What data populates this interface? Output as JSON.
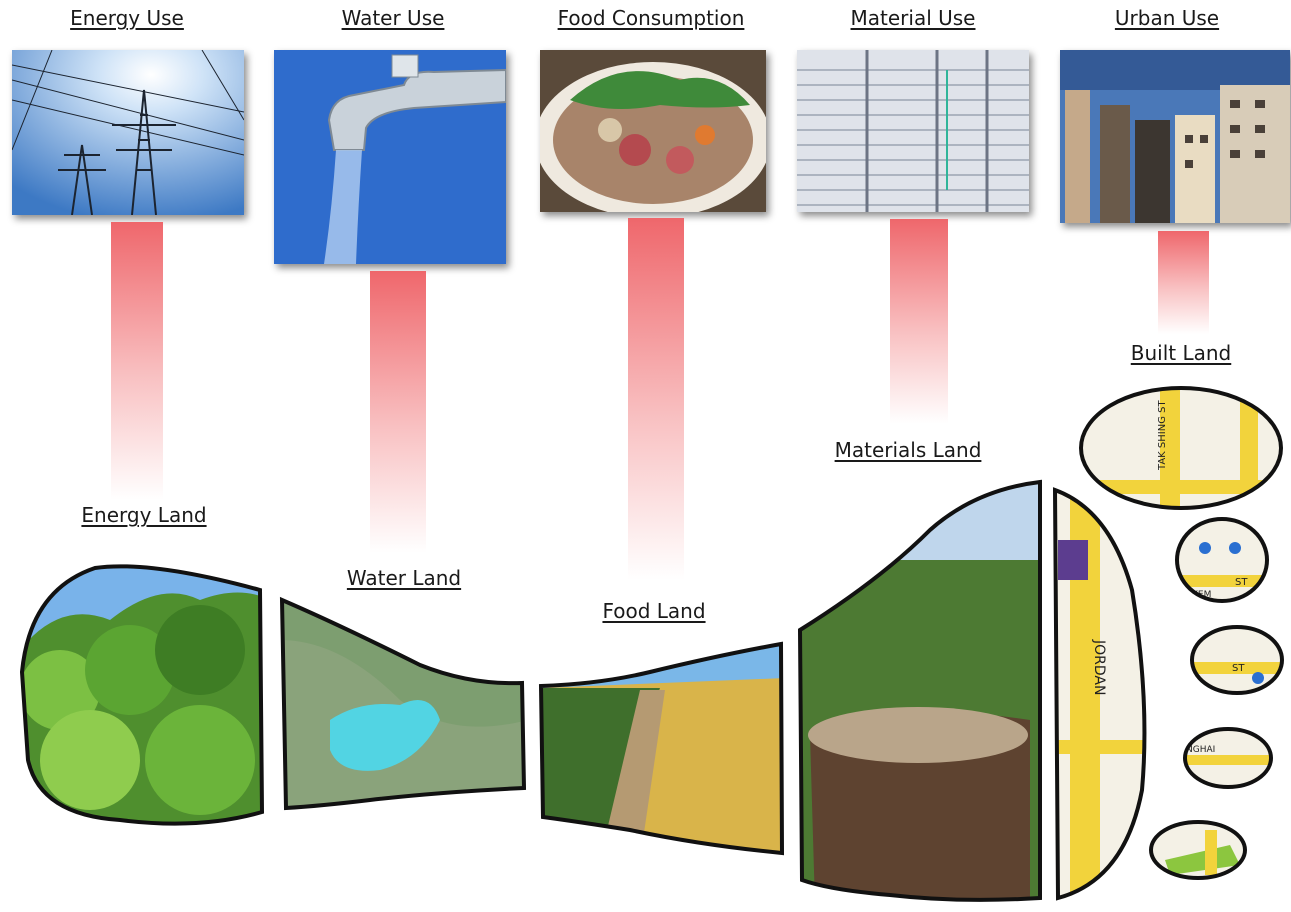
{
  "uses": [
    {
      "label": "Energy Use",
      "icon": "power-lines-photo"
    },
    {
      "label": "Water Use",
      "icon": "water-tap-photo"
    },
    {
      "label": "Food Consumption",
      "icon": "hotpot-food-photo"
    },
    {
      "label": "Material Use",
      "icon": "paper-stacks-photo"
    },
    {
      "label": "Urban Use",
      "icon": "city-buildings-photo"
    }
  ],
  "lands": [
    {
      "label": "Energy Land",
      "icon": "forest-photo"
    },
    {
      "label": "Water Land",
      "icon": "lake-aerial-photo"
    },
    {
      "label": "Food Land",
      "icon": "wheat-field-photo"
    },
    {
      "label": "Materials Land",
      "icon": "tree-stump-photo"
    },
    {
      "label": "Built Land",
      "icon": "street-map-photo"
    }
  ],
  "map_labels": [
    "JORDAN",
    "ST",
    "KEM",
    "NGHAI",
    "TAK SHING ST",
    "ST"
  ],
  "colors": {
    "bar": "#ee5f64",
    "outline": "#111111"
  }
}
